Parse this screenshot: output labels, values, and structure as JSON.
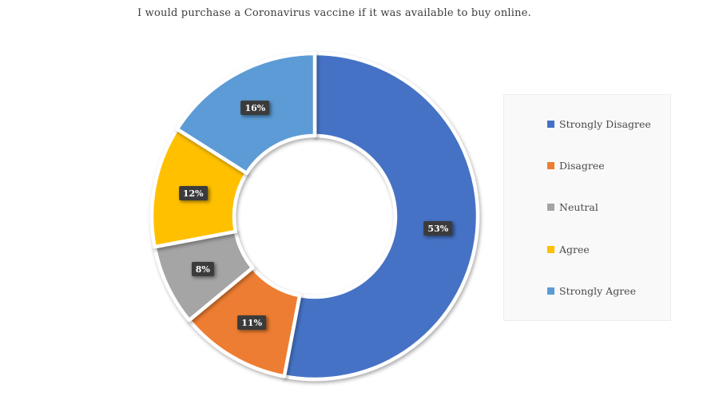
{
  "title": "I would purchase a Coronavirus vaccine if it was available to buy online.",
  "chart_data": {
    "type": "pie",
    "subtype": "donut",
    "title": "I would purchase a Coronavirus vaccine if it was available to buy online.",
    "categories": [
      "Strongly Disagree",
      "Disagree",
      "Neutral",
      "Agree",
      "Strongly Agree"
    ],
    "values": [
      53,
      11,
      8,
      12,
      16
    ],
    "unit": "%",
    "data_labels": [
      "53%",
      "11%",
      "8%",
      "12%",
      "16%"
    ],
    "colors": [
      "#4472C4",
      "#ED7D31",
      "#A5A5A5",
      "#FFC000",
      "#5B9BD5"
    ],
    "start_angle_deg": 0,
    "direction": "clockwise",
    "inner_radius_ratio": 0.495,
    "slice_border_color": "#FFFFFF",
    "legend_position": "right",
    "data_label_background": "#3B3B3B",
    "data_label_color": "#FFFFFF"
  },
  "legend": {
    "items": [
      {
        "label": "Strongly Disagree",
        "color": "#4472C4"
      },
      {
        "label": "Disagree",
        "color": "#ED7D31"
      },
      {
        "label": "Neutral",
        "color": "#A5A5A5"
      },
      {
        "label": "Agree",
        "color": "#FFC000"
      },
      {
        "label": "Strongly Agree",
        "color": "#5B9BD5"
      }
    ]
  }
}
